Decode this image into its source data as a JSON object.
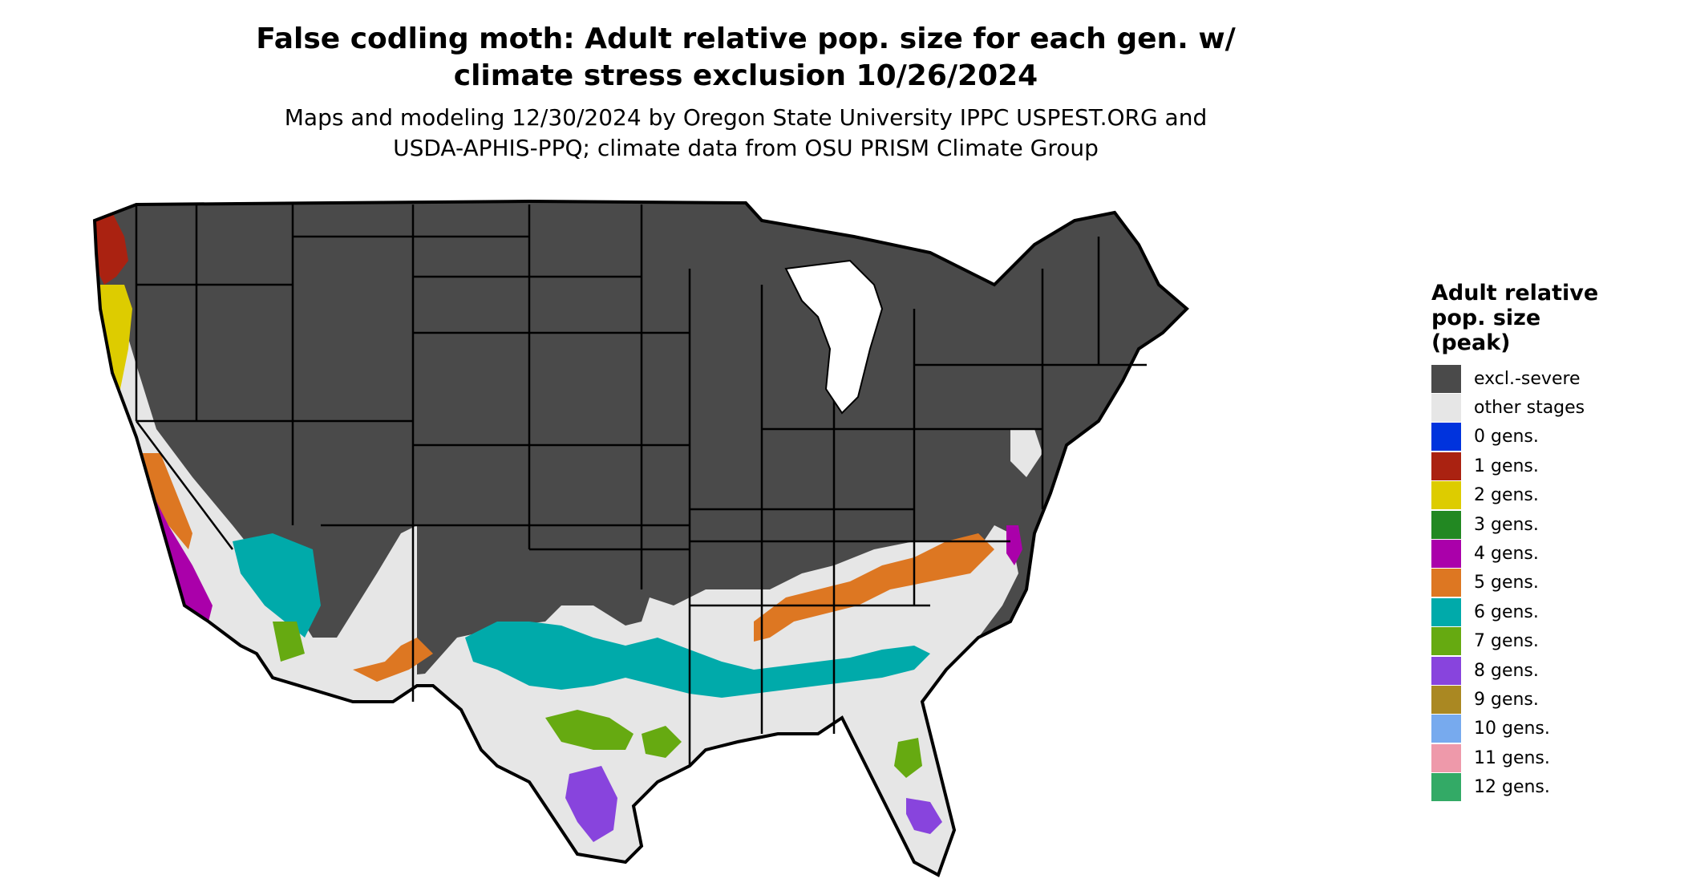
{
  "title_line1": "False codling moth: Adult relative pop. size for each gen. w/",
  "title_line2": "climate stress exclusion 10/26/2024",
  "subtitle_line1": "Maps and modeling 12/30/2024 by Oregon State University IPPC USPEST.ORG and",
  "subtitle_line2": "USDA-APHIS-PPQ; climate data from OSU PRISM Climate Group",
  "legend": {
    "title_line1": "Adult relative",
    "title_line2": "pop. size",
    "title_line3": "(peak)",
    "items": [
      {
        "label": "excl.-severe",
        "color": "#4a4a4a"
      },
      {
        "label": "other stages",
        "color": "#e6e6e6"
      },
      {
        "label": "0 gens.",
        "color": "#0033dd"
      },
      {
        "label": "1 gens.",
        "color": "#aa2211"
      },
      {
        "label": "2 gens.",
        "color": "#ddcc00"
      },
      {
        "label": "3 gens.",
        "color": "#228822"
      },
      {
        "label": "4 gens.",
        "color": "#aa00aa"
      },
      {
        "label": "5 gens.",
        "color": "#dd7722"
      },
      {
        "label": "6 gens.",
        "color": "#00aaaa"
      },
      {
        "label": "7 gens.",
        "color": "#66aa11"
      },
      {
        "label": "8 gens.",
        "color": "#8844dd"
      },
      {
        "label": "9 gens.",
        "color": "#aa8822"
      },
      {
        "label": "10 gens.",
        "color": "#77aaee"
      },
      {
        "label": "11 gens.",
        "color": "#ee99aa"
      },
      {
        "label": "12 gens.",
        "color": "#33aa66"
      }
    ]
  }
}
